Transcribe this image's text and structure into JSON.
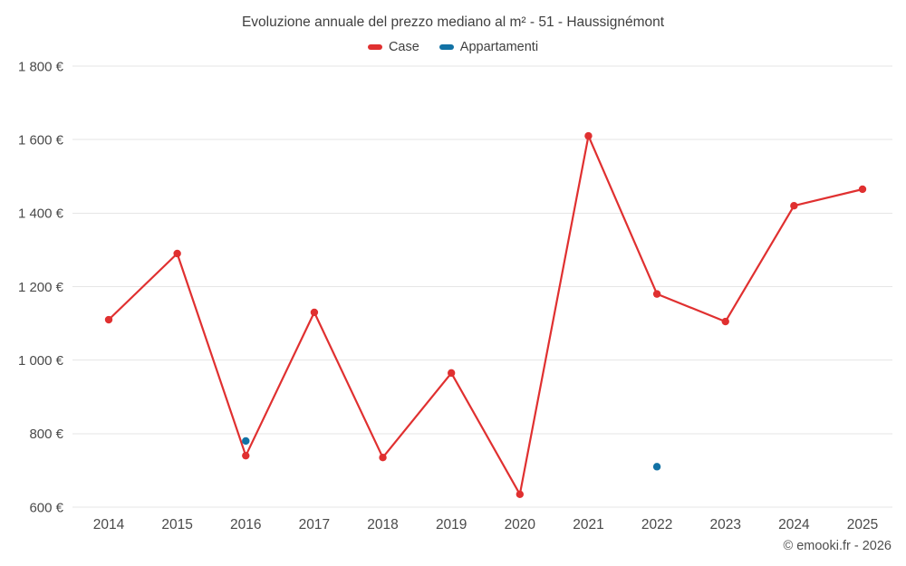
{
  "chart_data": {
    "type": "line",
    "title": "Evoluzione annuale del prezzo mediano al m² - 51 - Haussignémont",
    "categories": [
      "2014",
      "2015",
      "2016",
      "2017",
      "2018",
      "2019",
      "2020",
      "2021",
      "2022",
      "2023",
      "2024",
      "2025"
    ],
    "series": [
      {
        "name": "Case",
        "color": "#e03030",
        "values": [
          1110,
          1290,
          740,
          1130,
          735,
          965,
          635,
          1610,
          1180,
          1105,
          1420,
          1465
        ]
      },
      {
        "name": "Appartamenti",
        "color": "#1272a5",
        "values": [
          null,
          null,
          780,
          null,
          null,
          null,
          null,
          null,
          710,
          null,
          null,
          null
        ]
      }
    ],
    "ylim": [
      600,
      1800
    ],
    "ytick_values": [
      600,
      800,
      1000,
      1200,
      1400,
      1600,
      1800
    ],
    "ytick_labels": [
      "600 €",
      "800 €",
      "1 000 €",
      "1 200 €",
      "1 400 €",
      "1 600 €",
      "1 800 €"
    ],
    "xlabel": "",
    "ylabel": "",
    "grid": "horizontal",
    "legend_position": "top",
    "grid_color": "#e6e6e6",
    "axis_label_color": "#4a4a4a"
  },
  "footer": {
    "copyright": "© emooki.fr - 2026"
  }
}
